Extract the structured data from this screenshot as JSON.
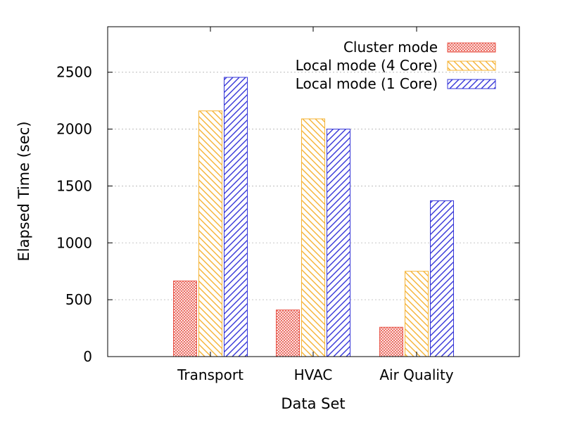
{
  "chart_data": {
    "type": "bar",
    "categories": [
      "Transport",
      "HVAC",
      "Air Quality"
    ],
    "series": [
      {
        "name": "Cluster mode",
        "values": [
          665,
          410,
          258
        ],
        "color": "#e8564a",
        "pattern": "crosshatch"
      },
      {
        "name": "Local mode (4 Core)",
        "values": [
          2160,
          2090,
          750
        ],
        "color": "#f5b335",
        "pattern": "diagonal-down"
      },
      {
        "name": "Local mode (1 Core)",
        "values": [
          2455,
          2000,
          1370
        ],
        "color": "#3535d8",
        "pattern": "diagonal-up"
      }
    ],
    "xlabel": "Data Set",
    "ylabel": "Elapsed Time (sec)",
    "ylim": [
      0,
      2900
    ],
    "yticks": [
      0,
      500,
      1000,
      1500,
      2000,
      2500
    ],
    "grid": "horizontal dotted",
    "legend_position": "top-right"
  }
}
